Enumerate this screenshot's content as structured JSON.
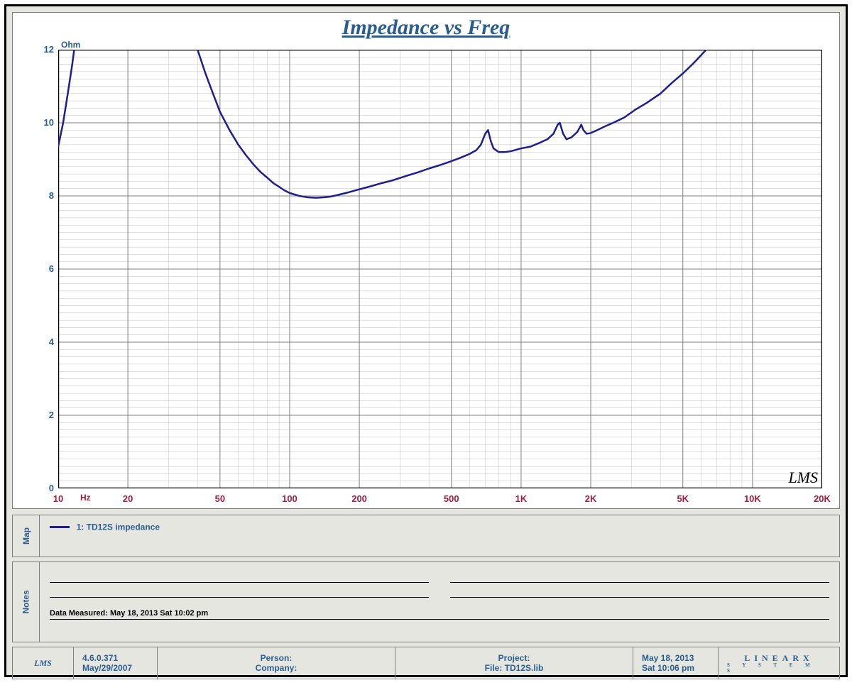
{
  "chart": {
    "type": "line",
    "title": "Impedance vs Freq",
    "y_unit": "Ohm",
    "x_unit": "Hz",
    "background_color": "#ffffff",
    "panel_background": "#e6e6e0",
    "frame_border_color": "#000000",
    "grid_major_color": "#808080",
    "grid_minor_color": "#c0c0c0",
    "axis_color": "#000000",
    "title_color": "#2a5d8f",
    "title_fontsize": 30,
    "y_label_color": "#2a5d8f",
    "x_label_color": "#a02040",
    "label_fontsize": 13,
    "line_color": "#1e1e8c",
    "line_width": 2.5,
    "x_scale": "log",
    "y_scale": "linear",
    "xlim": [
      10,
      20000
    ],
    "ylim": [
      0,
      12
    ],
    "x_major_ticks": [
      10,
      20,
      50,
      100,
      200,
      500,
      1000,
      2000,
      5000,
      10000,
      20000
    ],
    "x_tick_labels": [
      "10",
      "20",
      "50",
      "100",
      "200",
      "500",
      "1K",
      "2K",
      "5K",
      "10K",
      "20K"
    ],
    "y_major_ticks": [
      0,
      2,
      4,
      6,
      8,
      10,
      12
    ],
    "y_minor_step": 0.2,
    "watermark": "LMS",
    "series": [
      {
        "name": "1: TD12S impedance",
        "color": "#1e1e8c",
        "width": 2.5,
        "points": [
          [
            10,
            9.35
          ],
          [
            10.5,
            10.0
          ],
          [
            11,
            10.8
          ],
          [
            11.5,
            11.6
          ],
          [
            12,
            12.5
          ],
          [
            38,
            12.5
          ],
          [
            40,
            12.0
          ],
          [
            43,
            11.4
          ],
          [
            46,
            10.9
          ],
          [
            50,
            10.3
          ],
          [
            55,
            9.8
          ],
          [
            60,
            9.4
          ],
          [
            65,
            9.1
          ],
          [
            70,
            8.85
          ],
          [
            75,
            8.65
          ],
          [
            80,
            8.5
          ],
          [
            85,
            8.35
          ],
          [
            90,
            8.25
          ],
          [
            95,
            8.15
          ],
          [
            100,
            8.08
          ],
          [
            110,
            8.0
          ],
          [
            120,
            7.96
          ],
          [
            130,
            7.95
          ],
          [
            140,
            7.96
          ],
          [
            150,
            7.98
          ],
          [
            160,
            8.02
          ],
          [
            180,
            8.1
          ],
          [
            200,
            8.18
          ],
          [
            220,
            8.25
          ],
          [
            250,
            8.35
          ],
          [
            280,
            8.43
          ],
          [
            320,
            8.55
          ],
          [
            360,
            8.65
          ],
          [
            400,
            8.75
          ],
          [
            450,
            8.85
          ],
          [
            500,
            8.95
          ],
          [
            550,
            9.05
          ],
          [
            600,
            9.15
          ],
          [
            640,
            9.25
          ],
          [
            670,
            9.4
          ],
          [
            700,
            9.7
          ],
          [
            720,
            9.8
          ],
          [
            740,
            9.5
          ],
          [
            760,
            9.3
          ],
          [
            800,
            9.2
          ],
          [
            850,
            9.2
          ],
          [
            900,
            9.22
          ],
          [
            1000,
            9.3
          ],
          [
            1100,
            9.35
          ],
          [
            1200,
            9.45
          ],
          [
            1300,
            9.55
          ],
          [
            1380,
            9.7
          ],
          [
            1440,
            9.95
          ],
          [
            1470,
            10.0
          ],
          [
            1520,
            9.7
          ],
          [
            1570,
            9.55
          ],
          [
            1650,
            9.6
          ],
          [
            1750,
            9.75
          ],
          [
            1820,
            9.95
          ],
          [
            1860,
            9.8
          ],
          [
            1920,
            9.7
          ],
          [
            2000,
            9.72
          ],
          [
            2100,
            9.78
          ],
          [
            2300,
            9.9
          ],
          [
            2500,
            10.0
          ],
          [
            2800,
            10.15
          ],
          [
            3100,
            10.35
          ],
          [
            3500,
            10.55
          ],
          [
            4000,
            10.8
          ],
          [
            4500,
            11.1
          ],
          [
            5000,
            11.35
          ],
          [
            5500,
            11.6
          ],
          [
            6000,
            11.85
          ],
          [
            6400,
            12.05
          ],
          [
            6800,
            12.3
          ],
          [
            7200,
            12.5
          ]
        ]
      }
    ]
  },
  "legend": {
    "tab_label": "Map",
    "items": [
      {
        "label": "1: TD12S impedance",
        "color": "#1e1e8c"
      }
    ]
  },
  "notes": {
    "tab_label": "Notes",
    "data_measured_label": "Data Measured: May 18, 2013  Sat 10:02 pm"
  },
  "footer": {
    "lms_logo": "LMS",
    "version": "4.6.0.371",
    "version_date": "May/29/2007",
    "person_label": "Person:",
    "company_label": "Company:",
    "project_label": "Project:",
    "file_label": "File: TD12S.lib",
    "date": "May 18, 2013",
    "time": "Sat 10:06 pm",
    "brand_top": "LINEARX",
    "brand_bottom": "S Y S T E M S"
  }
}
